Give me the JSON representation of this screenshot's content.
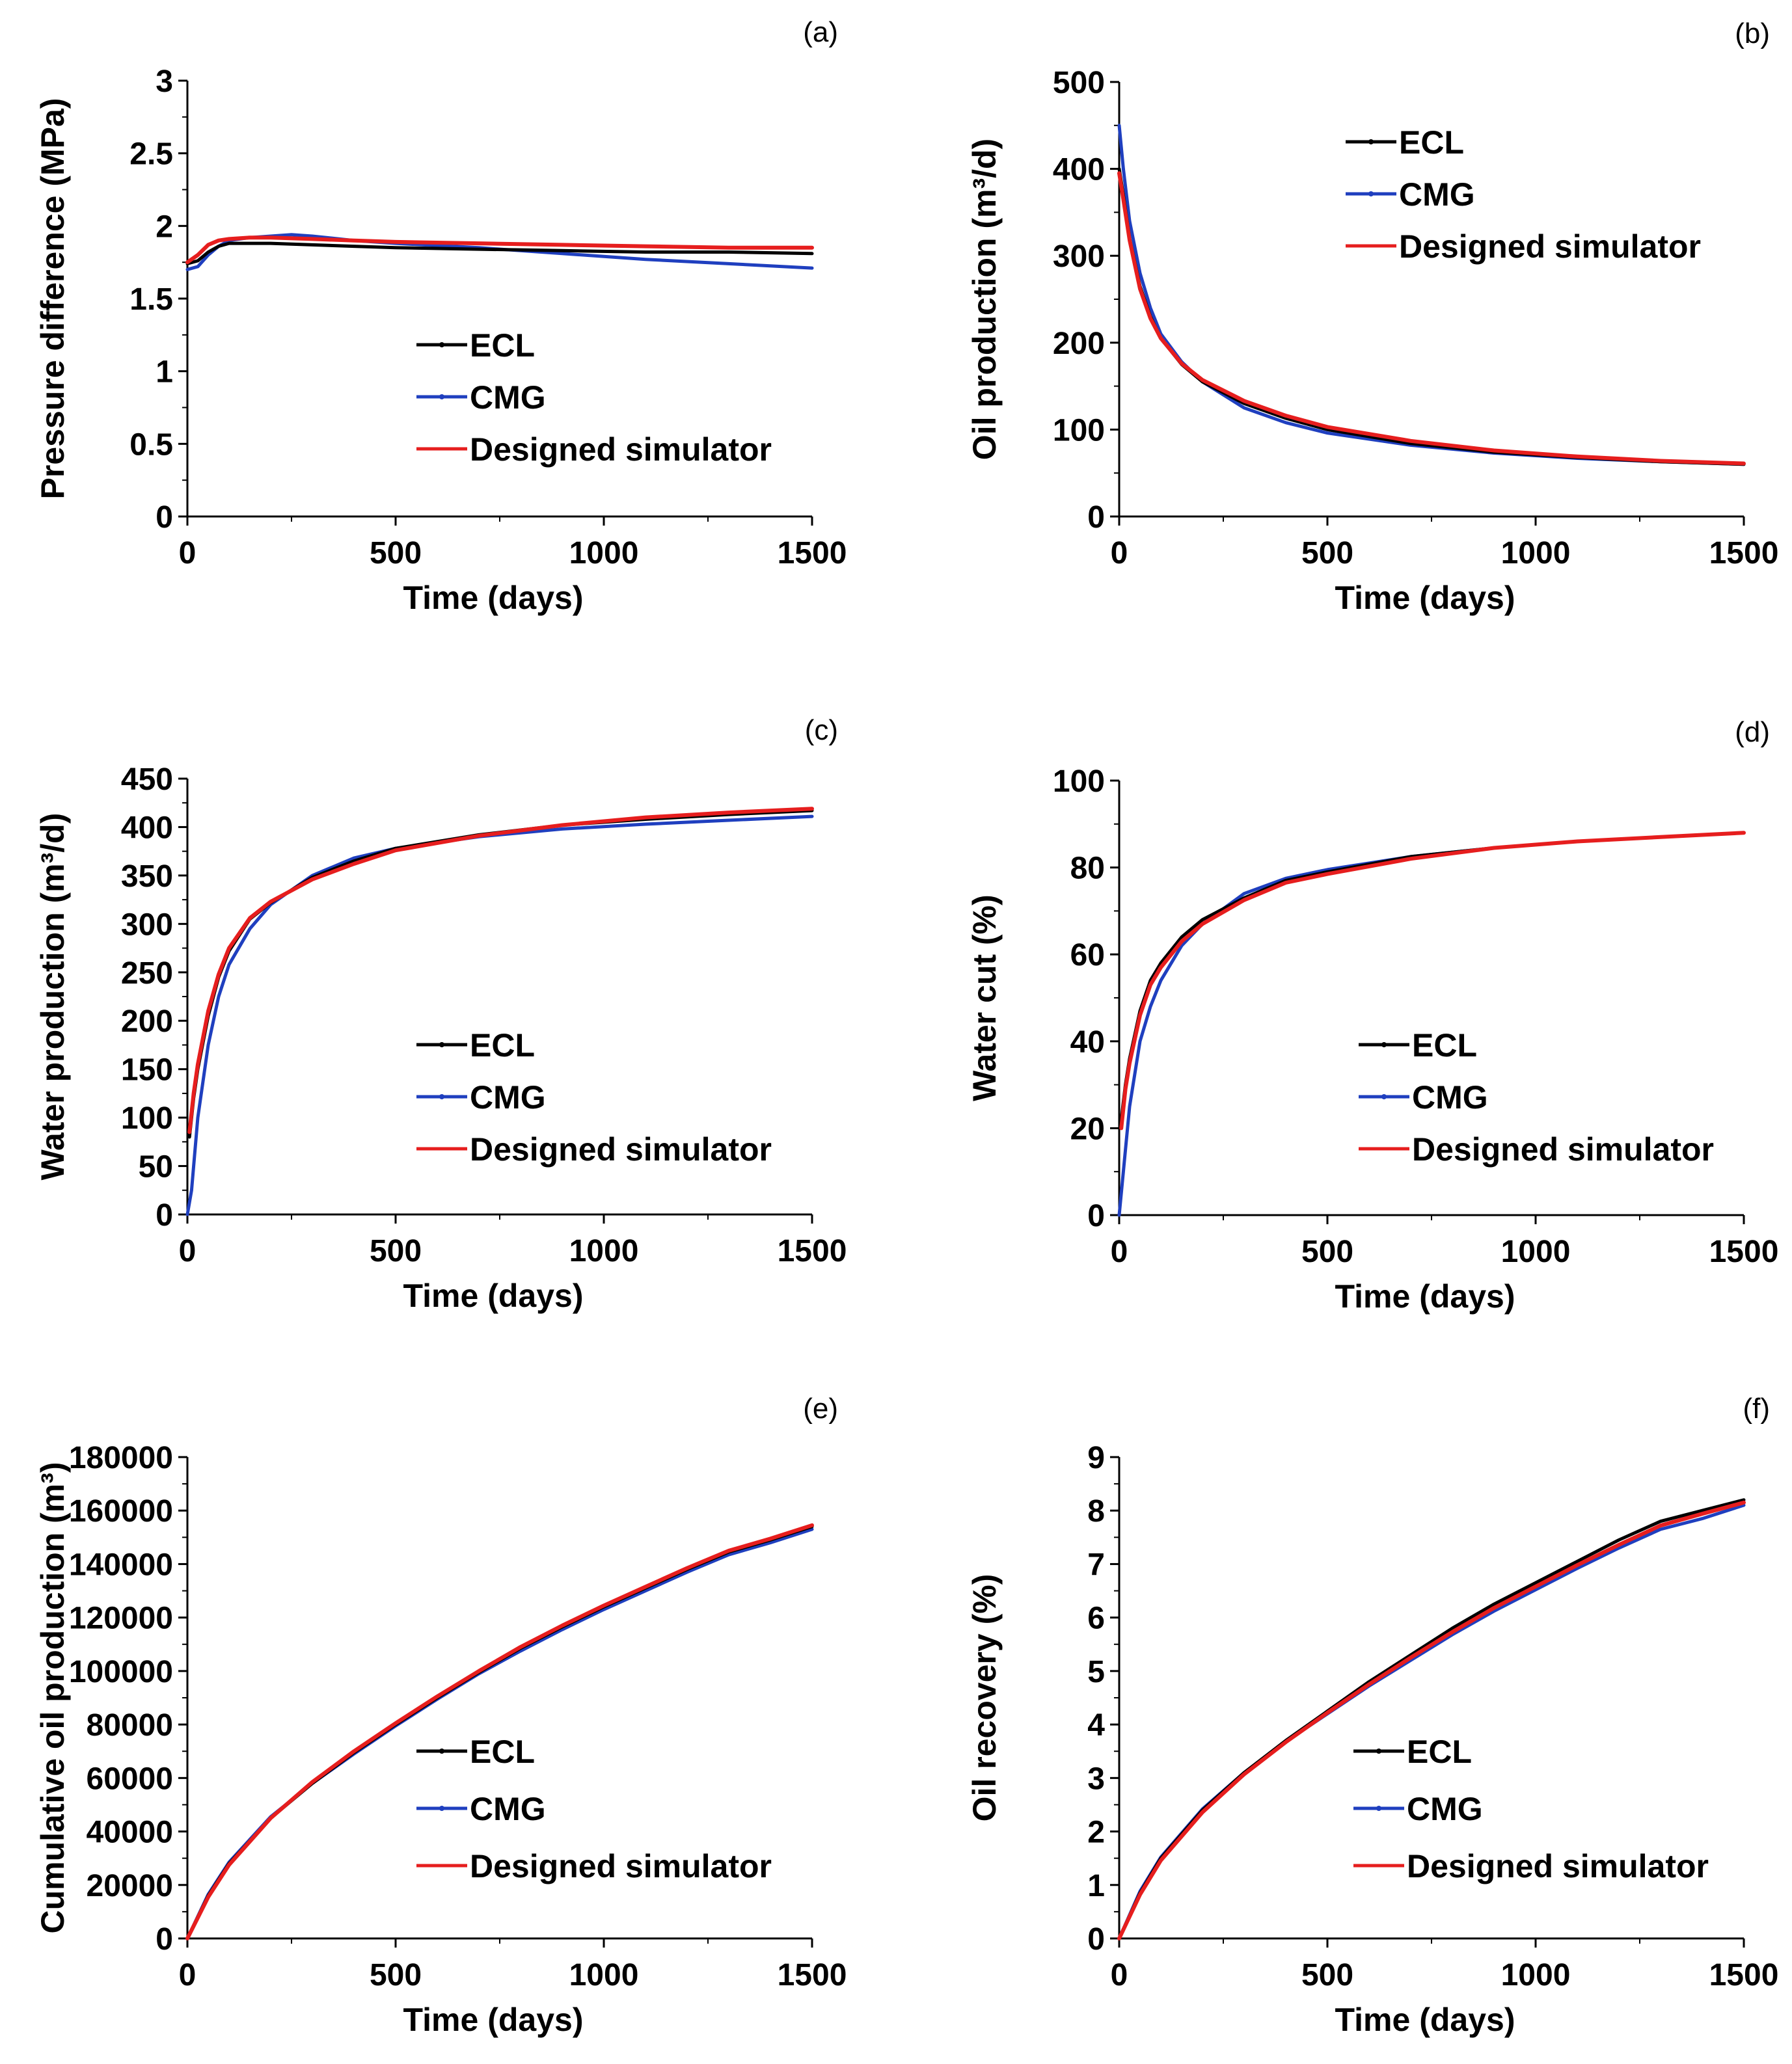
{
  "chart_data": [
    {
      "id": "a",
      "type": "line",
      "panel_label": "(a)",
      "xlabel": "Time (days)",
      "ylabel": "Pressure difference (MPa)",
      "xlim": [
        0,
        1500
      ],
      "ylim": [
        0,
        3
      ],
      "xticks": [
        0,
        500,
        1000,
        1500
      ],
      "xtick_labels": [
        "0",
        "500",
        "1000",
        "1500"
      ],
      "yticks": [
        0,
        0.5,
        1,
        1.5,
        2,
        2.5,
        3
      ],
      "ytick_labels": [
        "0",
        "0.5",
        "1",
        "1.5",
        "2",
        "2.5",
        "3"
      ],
      "legend": [
        "ECL",
        "CMG",
        "Designed simulator"
      ],
      "series": [
        {
          "name": "ECL",
          "color": "#000000",
          "x": [
            0,
            25,
            50,
            75,
            100,
            150,
            200,
            300,
            400,
            500,
            700,
            900,
            1100,
            1300,
            1500
          ],
          "y": [
            1.74,
            1.76,
            1.82,
            1.86,
            1.88,
            1.88,
            1.88,
            1.87,
            1.86,
            1.85,
            1.84,
            1.83,
            1.82,
            1.82,
            1.81
          ]
        },
        {
          "name": "CMG",
          "color": "#1f3fbf",
          "x": [
            0,
            25,
            50,
            75,
            100,
            150,
            200,
            250,
            300,
            400,
            500,
            700,
            900,
            1100,
            1300,
            1500
          ],
          "y": [
            1.7,
            1.72,
            1.8,
            1.86,
            1.9,
            1.92,
            1.93,
            1.94,
            1.93,
            1.9,
            1.88,
            1.85,
            1.81,
            1.77,
            1.74,
            1.71
          ]
        },
        {
          "name": "Designed simulator",
          "color": "#e61e1e",
          "x": [
            0,
            25,
            50,
            75,
            100,
            150,
            200,
            300,
            400,
            500,
            700,
            900,
            1100,
            1300,
            1500
          ],
          "y": [
            1.75,
            1.8,
            1.87,
            1.9,
            1.91,
            1.92,
            1.92,
            1.91,
            1.9,
            1.89,
            1.88,
            1.87,
            1.86,
            1.85,
            1.85
          ]
        }
      ]
    },
    {
      "id": "b",
      "type": "line",
      "panel_label": "(b)",
      "xlabel": "Time (days)",
      "ylabel": "Oil production  (m³/d)",
      "xlim": [
        0,
        1500
      ],
      "ylim": [
        0,
        500
      ],
      "xticks": [
        0,
        500,
        1000,
        1500
      ],
      "xtick_labels": [
        "0",
        "500",
        "1000",
        "1500"
      ],
      "yticks": [
        0,
        100,
        200,
        300,
        400,
        500
      ],
      "ytick_labels": [
        "0",
        "100",
        "200",
        "300",
        "400",
        "500"
      ],
      "legend": [
        "ECL",
        "CMG",
        "Designed simulator"
      ],
      "series": [
        {
          "name": "ECL",
          "color": "#000000",
          "x": [
            0,
            10,
            25,
            50,
            75,
            100,
            150,
            200,
            300,
            400,
            500,
            700,
            900,
            1100,
            1300,
            1500
          ],
          "y": [
            400,
            370,
            320,
            265,
            230,
            205,
            175,
            155,
            130,
            113,
            100,
            84,
            74,
            68,
            63,
            60
          ]
        },
        {
          "name": "CMG",
          "color": "#1f3fbf",
          "x": [
            0,
            10,
            25,
            50,
            75,
            100,
            150,
            200,
            300,
            400,
            500,
            700,
            900,
            1100,
            1300,
            1500
          ],
          "y": [
            450,
            400,
            340,
            280,
            240,
            210,
            178,
            155,
            125,
            108,
            96,
            82,
            73,
            67,
            63,
            60
          ]
        },
        {
          "name": "Designed simulator",
          "color": "#e61e1e",
          "x": [
            0,
            10,
            25,
            50,
            75,
            100,
            150,
            200,
            300,
            400,
            500,
            700,
            900,
            1100,
            1300,
            1500
          ],
          "y": [
            395,
            365,
            318,
            262,
            228,
            205,
            176,
            157,
            133,
            116,
            103,
            87,
            76,
            69,
            64,
            61
          ]
        }
      ]
    },
    {
      "id": "c",
      "type": "line",
      "panel_label": "(c)",
      "xlabel": "Time (days)",
      "ylabel": "Water production (m³/d)",
      "xlim": [
        0,
        1500
      ],
      "ylim": [
        0,
        450
      ],
      "xticks": [
        0,
        500,
        1000,
        1500
      ],
      "xtick_labels": [
        "0",
        "500",
        "1000",
        "1500"
      ],
      "yticks": [
        0,
        50,
        100,
        150,
        200,
        250,
        300,
        350,
        400,
        450
      ],
      "ytick_labels": [
        "0",
        "50",
        "100",
        "150",
        "200",
        "250",
        "300",
        "350",
        "400",
        "450"
      ],
      "legend": [
        "ECL",
        "CMG",
        "Designed simulator"
      ],
      "series": [
        {
          "name": "ECL",
          "color": "#000000",
          "x": [
            5,
            15,
            25,
            50,
            75,
            100,
            150,
            200,
            300,
            400,
            500,
            700,
            900,
            1100,
            1300,
            1500
          ],
          "y": [
            80,
            120,
            150,
            205,
            245,
            272,
            305,
            322,
            348,
            365,
            378,
            392,
            402,
            408,
            413,
            417
          ]
        },
        {
          "name": "CMG",
          "color": "#1f3fbf",
          "x": [
            0,
            10,
            25,
            50,
            75,
            100,
            150,
            200,
            300,
            400,
            500,
            700,
            900,
            1100,
            1300,
            1500
          ],
          "y": [
            0,
            25,
            100,
            175,
            225,
            258,
            295,
            320,
            350,
            368,
            378,
            390,
            398,
            403,
            407,
            411
          ]
        },
        {
          "name": "Designed simulator",
          "color": "#e61e1e",
          "x": [
            5,
            15,
            25,
            50,
            75,
            100,
            150,
            200,
            300,
            400,
            500,
            700,
            900,
            1100,
            1300,
            1500
          ],
          "y": [
            85,
            125,
            155,
            210,
            248,
            275,
            306,
            323,
            346,
            362,
            376,
            391,
            402,
            410,
            415,
            419
          ]
        }
      ]
    },
    {
      "id": "d",
      "type": "line",
      "panel_label": "(d)",
      "xlabel": "Time (days)",
      "ylabel": "Water cut (%)",
      "xlim": [
        0,
        1500
      ],
      "ylim": [
        0,
        100
      ],
      "xticks": [
        0,
        500,
        1000,
        1500
      ],
      "xtick_labels": [
        "0",
        "500",
        "1000",
        "1500"
      ],
      "yticks": [
        0,
        20,
        40,
        60,
        80,
        100
      ],
      "ytick_labels": [
        "0",
        "20",
        "40",
        "60",
        "80",
        "100"
      ],
      "legend": [
        "ECL",
        "CMG",
        "Designed simulator"
      ],
      "series": [
        {
          "name": "ECL",
          "color": "#000000",
          "x": [
            5,
            15,
            25,
            50,
            75,
            100,
            150,
            200,
            300,
            400,
            500,
            700,
            900,
            1100,
            1300,
            1500
          ],
          "y": [
            22,
            30,
            36,
            47,
            54,
            58,
            64,
            68,
            73,
            77,
            79,
            82.5,
            84.5,
            86,
            87,
            88
          ]
        },
        {
          "name": "CMG",
          "color": "#1f3fbf",
          "x": [
            0,
            10,
            25,
            50,
            75,
            100,
            150,
            200,
            300,
            400,
            500,
            700,
            900,
            1100,
            1300,
            1500
          ],
          "y": [
            0,
            10,
            25,
            40,
            48,
            54,
            62,
            67,
            74,
            77.5,
            79.5,
            82.5,
            84.5,
            86,
            87,
            88
          ]
        },
        {
          "name": "Designed simulator",
          "color": "#e61e1e",
          "x": [
            5,
            15,
            25,
            50,
            75,
            100,
            150,
            200,
            300,
            400,
            500,
            700,
            900,
            1100,
            1300,
            1500
          ],
          "y": [
            20,
            29,
            35,
            46,
            53,
            57,
            63,
            67,
            72.5,
            76.5,
            78.5,
            82,
            84.5,
            86,
            87,
            88
          ]
        }
      ]
    },
    {
      "id": "e",
      "type": "line",
      "panel_label": "(e)",
      "xlabel": "Time (days)",
      "ylabel": "Cumulative oil production (m³)",
      "xlim": [
        0,
        1500
      ],
      "ylim": [
        0,
        180000
      ],
      "xticks": [
        0,
        500,
        1000,
        1500
      ],
      "xtick_labels": [
        "0",
        "500",
        "1000",
        "1500"
      ],
      "yticks": [
        0,
        20000,
        40000,
        60000,
        80000,
        100000,
        120000,
        140000,
        160000,
        180000
      ],
      "ytick_labels": [
        "0",
        "20000",
        "40000",
        "60000",
        "80000",
        "100000",
        "120000",
        "140000",
        "160000",
        "180000"
      ],
      "legend": [
        "ECL",
        "CMG",
        "Designed simulator"
      ],
      "series": [
        {
          "name": "ECL",
          "color": "#000000",
          "x": [
            0,
            50,
            100,
            200,
            300,
            400,
            500,
            600,
            700,
            800,
            900,
            1000,
            1100,
            1200,
            1300,
            1400,
            1500
          ],
          "y": [
            0,
            16000,
            28000,
            45000,
            58000,
            69500,
            80000,
            90000,
            99500,
            108500,
            116500,
            124000,
            131000,
            138000,
            144500,
            149000,
            154000
          ]
        },
        {
          "name": "CMG",
          "color": "#1f3fbf",
          "x": [
            0,
            50,
            100,
            200,
            300,
            400,
            500,
            600,
            700,
            800,
            900,
            1000,
            1100,
            1200,
            1300,
            1400,
            1500
          ],
          "y": [
            0,
            16500,
            28500,
            45500,
            58000,
            69000,
            79500,
            89500,
            99000,
            107500,
            115500,
            123000,
            130000,
            137000,
            143500,
            148000,
            153000
          ]
        },
        {
          "name": "Designed simulator",
          "color": "#e61e1e",
          "x": [
            0,
            50,
            100,
            200,
            300,
            400,
            500,
            600,
            700,
            800,
            900,
            1000,
            1100,
            1200,
            1300,
            1400,
            1500
          ],
          "y": [
            0,
            15500,
            27500,
            45000,
            58500,
            70000,
            80500,
            90500,
            100000,
            109000,
            117000,
            124500,
            131500,
            138500,
            145000,
            149500,
            154500
          ]
        }
      ]
    },
    {
      "id": "f",
      "type": "line",
      "panel_label": "(f)",
      "xlabel": "Time (days)",
      "ylabel": "Oil recovery (%)",
      "xlim": [
        0,
        1500
      ],
      "ylim": [
        0,
        9
      ],
      "xticks": [
        0,
        500,
        1000,
        1500
      ],
      "xtick_labels": [
        "0",
        "500",
        "1000",
        "1500"
      ],
      "yticks": [
        0,
        1,
        2,
        3,
        4,
        5,
        6,
        7,
        8,
        9
      ],
      "ytick_labels": [
        "0",
        "1",
        "2",
        "3",
        "4",
        "5",
        "6",
        "7",
        "8",
        "9"
      ],
      "legend": [
        "ECL",
        "CMG",
        "Designed simulator"
      ],
      "series": [
        {
          "name": "ECL",
          "color": "#000000",
          "x": [
            0,
            50,
            100,
            200,
            300,
            400,
            500,
            600,
            700,
            800,
            900,
            1000,
            1100,
            1200,
            1300,
            1400,
            1500
          ],
          "y": [
            0,
            0.85,
            1.5,
            2.4,
            3.1,
            3.7,
            4.25,
            4.8,
            5.3,
            5.8,
            6.25,
            6.65,
            7.05,
            7.45,
            7.8,
            8.0,
            8.2
          ]
        },
        {
          "name": "CMG",
          "color": "#1f3fbf",
          "x": [
            0,
            50,
            100,
            200,
            300,
            400,
            500,
            600,
            700,
            800,
            900,
            1000,
            1100,
            1200,
            1300,
            1400,
            1500
          ],
          "y": [
            0,
            0.88,
            1.52,
            2.42,
            3.1,
            3.68,
            4.2,
            4.72,
            5.2,
            5.68,
            6.12,
            6.52,
            6.92,
            7.3,
            7.65,
            7.85,
            8.1
          ]
        },
        {
          "name": "Designed simulator",
          "color": "#e61e1e",
          "x": [
            0,
            50,
            100,
            200,
            300,
            400,
            500,
            600,
            700,
            800,
            900,
            1000,
            1100,
            1200,
            1300,
            1400,
            1500
          ],
          "y": [
            0,
            0.82,
            1.46,
            2.36,
            3.07,
            3.67,
            4.22,
            4.75,
            5.25,
            5.73,
            6.18,
            6.58,
            6.98,
            7.36,
            7.72,
            7.94,
            8.15
          ]
        }
      ]
    }
  ]
}
